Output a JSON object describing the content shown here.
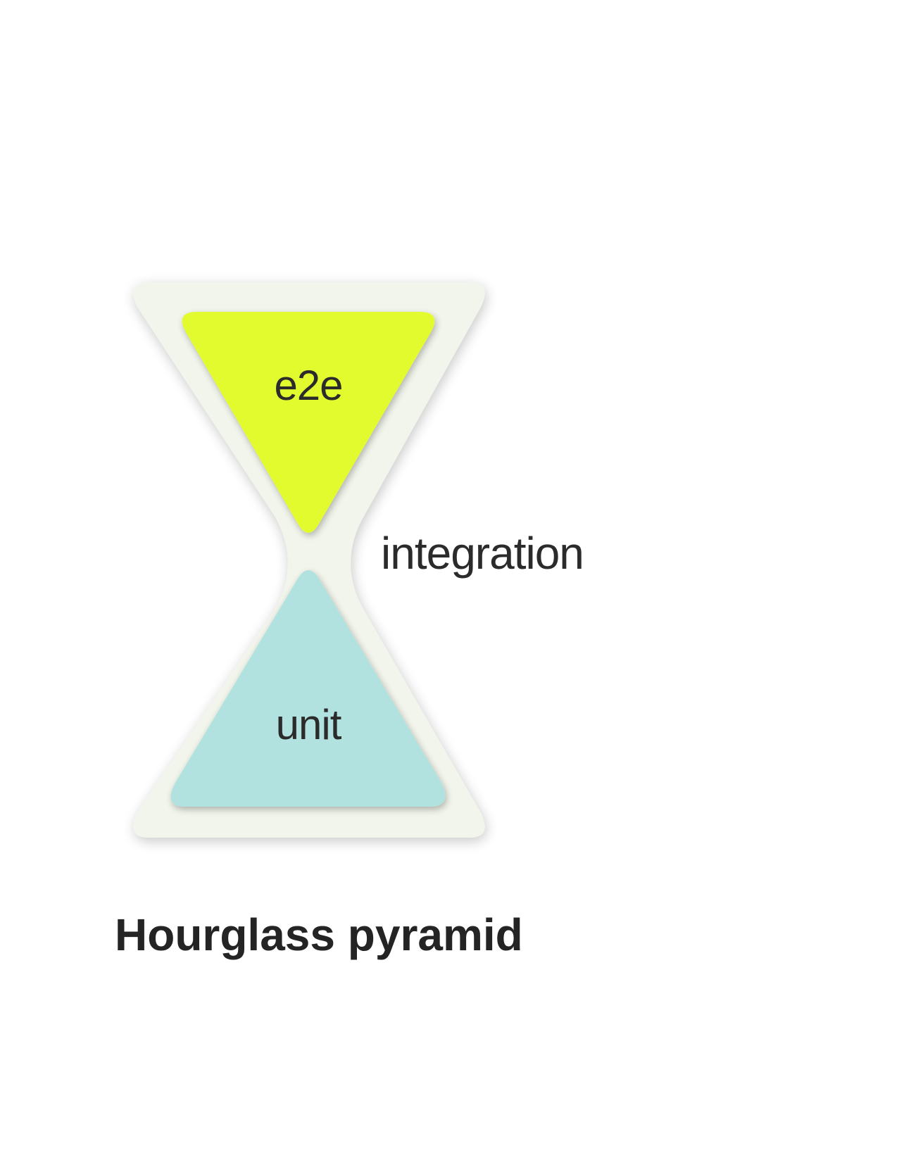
{
  "diagram": {
    "layers": [
      {
        "id": "e2e",
        "label": "e2e",
        "color": "#e2fb2f"
      },
      {
        "id": "integration",
        "label": "integration",
        "color": "#f1f5eb"
      },
      {
        "id": "unit",
        "label": "unit",
        "color": "#b1e2df"
      }
    ],
    "caption": "Hourglass pyramid"
  },
  "colors": {
    "frame": "#f1f5eb",
    "e2e": "#e2fb2f",
    "unit": "#b1e2df",
    "text": "#2b2b2b"
  }
}
